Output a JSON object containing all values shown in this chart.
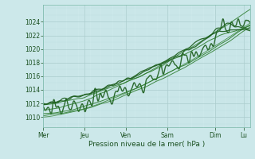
{
  "title": "",
  "xlabel": "Pression niveau de la mer( hPa )",
  "ylabel": "",
  "bg_color": "#cce8ea",
  "grid_major_color": "#aacccc",
  "grid_minor_color": "#bbdddd",
  "line_color_dark": "#1a5c1a",
  "line_color_mid": "#2a7a2a",
  "ylim": [
    1008.5,
    1026.5
  ],
  "yticks": [
    1010,
    1012,
    1014,
    1016,
    1018,
    1020,
    1022,
    1024
  ],
  "x_day_labels": [
    "Mer",
    "Jeu",
    "Ven",
    "Sam",
    "Dim",
    "Lu"
  ],
  "x_day_positions": [
    0,
    0.2,
    0.4,
    0.6,
    0.83,
    0.97
  ],
  "num_points": 500
}
